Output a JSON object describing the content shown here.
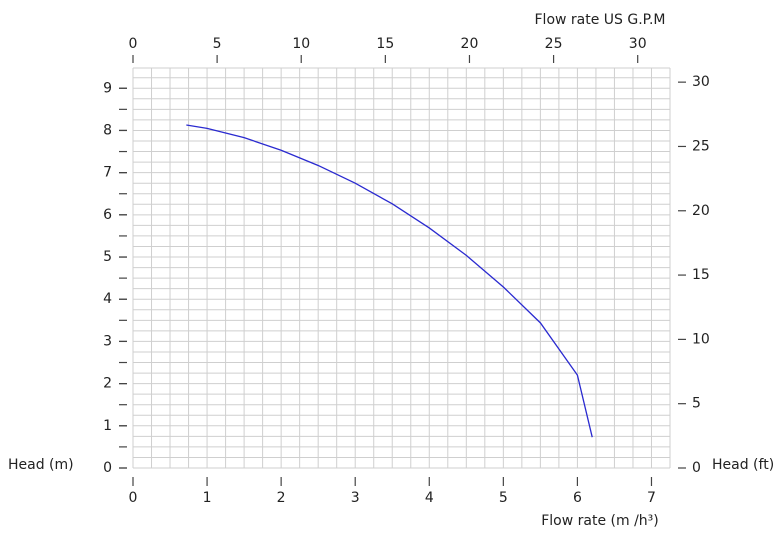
{
  "chart_data": {
    "type": "line",
    "x_label": "Flow rate  (m /h³)",
    "x2_label": "Flow rate US  G.P.M",
    "y_label": "Head (m)",
    "y2_label": "Head (ft)",
    "x": [
      0.72,
      1,
      1.5,
      2,
      2.5,
      3,
      3.5,
      4,
      4.5,
      5,
      5.5,
      6,
      6.2
    ],
    "series": [
      {
        "color": "#2a2ad0",
        "values": [
          8.13,
          8.05,
          7.83,
          7.53,
          7.17,
          6.75,
          6.26,
          5.69,
          5.04,
          4.29,
          3.44,
          2.2,
          0.73
        ]
      }
    ],
    "xlim": [
      0,
      7.25
    ],
    "xticks": [
      0,
      1,
      2,
      3,
      4,
      5,
      6,
      7
    ],
    "x2lim": [
      0,
      31.92
    ],
    "x2ticks": [
      0,
      5,
      10,
      15,
      20,
      25,
      30
    ],
    "ylim": [
      0,
      9.48
    ],
    "yticks": [
      0,
      1,
      2,
      3,
      4,
      5,
      6,
      7,
      8,
      9
    ],
    "y2lim": [
      0,
      31.1
    ],
    "y2ticks": [
      0,
      5,
      10,
      15,
      20,
      25,
      30
    ],
    "grid": true
  }
}
